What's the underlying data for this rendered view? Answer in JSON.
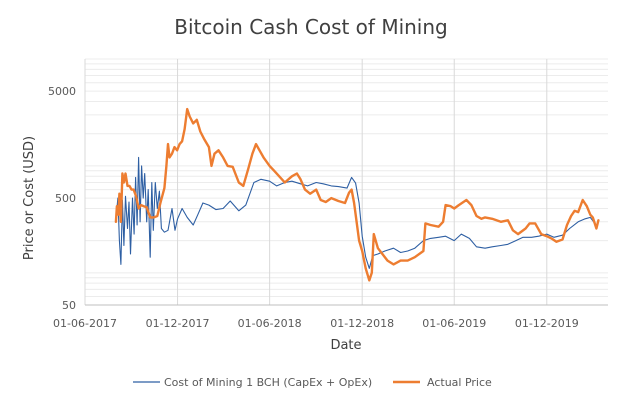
{
  "chart_data": {
    "type": "line",
    "title": "Bitcoin Cash Cost of Mining",
    "xlabel": "Date",
    "ylabel": "Price or Cost (USD)",
    "y_scale": "log",
    "ylim": [
      50,
      10000
    ],
    "xlim": [
      "2017-06-01",
      "2020-03-31"
    ],
    "y_ticks": [
      50,
      500,
      5000
    ],
    "x_ticks": [
      "01-06-2017",
      "01-12-2017",
      "01-06-2018",
      "01-12-2018",
      "01-06-2019",
      "01-12-2019"
    ],
    "grid": true,
    "legend_position": "bottom",
    "series": [
      {
        "name": "Cost of Mining 1 BCH (CapEx + OpEx)",
        "color": "#2e5fa3",
        "points": [
          [
            "2017-08-01",
            320
          ],
          [
            "2017-08-05",
            500
          ],
          [
            "2017-08-08",
            200
          ],
          [
            "2017-08-11",
            120
          ],
          [
            "2017-08-14",
            480
          ],
          [
            "2017-08-17",
            180
          ],
          [
            "2017-08-20",
            520
          ],
          [
            "2017-08-24",
            260
          ],
          [
            "2017-08-27",
            460
          ],
          [
            "2017-08-30",
            150
          ],
          [
            "2017-09-03",
            500
          ],
          [
            "2017-09-06",
            230
          ],
          [
            "2017-09-09",
            780
          ],
          [
            "2017-09-12",
            280
          ],
          [
            "2017-09-15",
            1200
          ],
          [
            "2017-09-18",
            300
          ],
          [
            "2017-09-21",
            1000
          ],
          [
            "2017-09-24",
            500
          ],
          [
            "2017-09-27",
            850
          ],
          [
            "2017-10-01",
            300
          ],
          [
            "2017-10-04",
            600
          ],
          [
            "2017-10-08",
            140
          ],
          [
            "2017-10-11",
            700
          ],
          [
            "2017-10-14",
            250
          ],
          [
            "2017-10-18",
            700
          ],
          [
            "2017-10-22",
            400
          ],
          [
            "2017-10-26",
            580
          ],
          [
            "2017-10-30",
            260
          ],
          [
            "2017-11-05",
            240
          ],
          [
            "2017-11-12",
            250
          ],
          [
            "2017-11-20",
            400
          ],
          [
            "2017-11-26",
            250
          ],
          [
            "2017-12-01",
            320
          ],
          [
            "2017-12-10",
            400
          ],
          [
            "2017-12-20",
            330
          ],
          [
            "2018-01-01",
            280
          ],
          [
            "2018-01-10",
            350
          ],
          [
            "2018-01-20",
            450
          ],
          [
            "2018-02-01",
            430
          ],
          [
            "2018-02-15",
            390
          ],
          [
            "2018-03-01",
            400
          ],
          [
            "2018-03-15",
            470
          ],
          [
            "2018-04-01",
            380
          ],
          [
            "2018-04-15",
            430
          ],
          [
            "2018-05-01",
            700
          ],
          [
            "2018-05-15",
            750
          ],
          [
            "2018-06-01",
            720
          ],
          [
            "2018-06-15",
            650
          ],
          [
            "2018-07-01",
            700
          ],
          [
            "2018-07-15",
            720
          ],
          [
            "2018-08-01",
            680
          ],
          [
            "2018-08-15",
            650
          ],
          [
            "2018-09-01",
            700
          ],
          [
            "2018-09-15",
            680
          ],
          [
            "2018-10-01",
            650
          ],
          [
            "2018-10-15",
            640
          ],
          [
            "2018-11-01",
            620
          ],
          [
            "2018-11-10",
            780
          ],
          [
            "2018-11-18",
            690
          ],
          [
            "2018-11-25",
            450
          ],
          [
            "2018-12-01",
            220
          ],
          [
            "2018-12-08",
            140
          ],
          [
            "2018-12-15",
            110
          ],
          [
            "2018-12-22",
            145
          ],
          [
            "2019-01-01",
            150
          ],
          [
            "2019-01-15",
            160
          ],
          [
            "2019-02-01",
            170
          ],
          [
            "2019-02-15",
            155
          ],
          [
            "2019-03-01",
            160
          ],
          [
            "2019-03-15",
            170
          ],
          [
            "2019-04-01",
            200
          ],
          [
            "2019-04-15",
            210
          ],
          [
            "2019-05-01",
            215
          ],
          [
            "2019-05-15",
            220
          ],
          [
            "2019-06-01",
            200
          ],
          [
            "2019-06-15",
            230
          ],
          [
            "2019-07-01",
            210
          ],
          [
            "2019-07-15",
            175
          ],
          [
            "2019-08-01",
            170
          ],
          [
            "2019-08-15",
            175
          ],
          [
            "2019-09-01",
            180
          ],
          [
            "2019-09-15",
            185
          ],
          [
            "2019-10-01",
            200
          ],
          [
            "2019-10-15",
            215
          ],
          [
            "2019-11-01",
            215
          ],
          [
            "2019-11-15",
            220
          ],
          [
            "2019-12-01",
            230
          ],
          [
            "2019-12-15",
            215
          ],
          [
            "2020-01-01",
            225
          ],
          [
            "2020-01-15",
            260
          ],
          [
            "2020-02-01",
            300
          ],
          [
            "2020-02-15",
            320
          ],
          [
            "2020-02-25",
            330
          ],
          [
            "2020-03-05",
            290
          ]
        ]
      },
      {
        "name": "Actual Price",
        "color": "#ed7d31",
        "points": [
          [
            "2017-08-01",
            300
          ],
          [
            "2017-08-03",
            420
          ],
          [
            "2017-08-06",
            350
          ],
          [
            "2017-08-08",
            550
          ],
          [
            "2017-08-11",
            300
          ],
          [
            "2017-08-14",
            850
          ],
          [
            "2017-08-17",
            700
          ],
          [
            "2017-08-20",
            850
          ],
          [
            "2017-08-24",
            650
          ],
          [
            "2017-08-28",
            650
          ],
          [
            "2017-09-01",
            600
          ],
          [
            "2017-09-05",
            600
          ],
          [
            "2017-09-10",
            520
          ],
          [
            "2017-09-15",
            400
          ],
          [
            "2017-09-20",
            430
          ],
          [
            "2017-09-25",
            420
          ],
          [
            "2017-10-01",
            410
          ],
          [
            "2017-10-08",
            330
          ],
          [
            "2017-10-15",
            330
          ],
          [
            "2017-10-22",
            340
          ],
          [
            "2017-10-28",
            450
          ],
          [
            "2017-11-05",
            620
          ],
          [
            "2017-11-09",
            1000
          ],
          [
            "2017-11-12",
            1600
          ],
          [
            "2017-11-15",
            1200
          ],
          [
            "2017-11-20",
            1300
          ],
          [
            "2017-11-25",
            1500
          ],
          [
            "2017-11-30",
            1400
          ],
          [
            "2017-12-05",
            1600
          ],
          [
            "2017-12-10",
            1700
          ],
          [
            "2017-12-15",
            2200
          ],
          [
            "2017-12-20",
            3400
          ],
          [
            "2017-12-25",
            2900
          ],
          [
            "2018-01-01",
            2500
          ],
          [
            "2018-01-08",
            2700
          ],
          [
            "2018-01-15",
            2100
          ],
          [
            "2018-01-22",
            1800
          ],
          [
            "2018-02-01",
            1500
          ],
          [
            "2018-02-06",
            1000
          ],
          [
            "2018-02-12",
            1300
          ],
          [
            "2018-02-20",
            1400
          ],
          [
            "2018-03-01",
            1200
          ],
          [
            "2018-03-10",
            1000
          ],
          [
            "2018-03-20",
            980
          ],
          [
            "2018-04-01",
            700
          ],
          [
            "2018-04-10",
            650
          ],
          [
            "2018-04-20",
            950
          ],
          [
            "2018-04-28",
            1300
          ],
          [
            "2018-05-05",
            1600
          ],
          [
            "2018-05-12",
            1400
          ],
          [
            "2018-05-20",
            1200
          ],
          [
            "2018-06-01",
            1000
          ],
          [
            "2018-06-10",
            900
          ],
          [
            "2018-06-20",
            800
          ],
          [
            "2018-07-01",
            700
          ],
          [
            "2018-07-15",
            800
          ],
          [
            "2018-07-25",
            850
          ],
          [
            "2018-08-01",
            750
          ],
          [
            "2018-08-10",
            600
          ],
          [
            "2018-08-20",
            550
          ],
          [
            "2018-09-01",
            600
          ],
          [
            "2018-09-10",
            480
          ],
          [
            "2018-09-20",
            460
          ],
          [
            "2018-10-01",
            500
          ],
          [
            "2018-10-15",
            470
          ],
          [
            "2018-10-28",
            450
          ],
          [
            "2018-11-05",
            560
          ],
          [
            "2018-11-10",
            600
          ],
          [
            "2018-11-15",
            450
          ],
          [
            "2018-11-20",
            300
          ],
          [
            "2018-11-25",
            200
          ],
          [
            "2018-12-01",
            160
          ],
          [
            "2018-12-08",
            110
          ],
          [
            "2018-12-15",
            85
          ],
          [
            "2018-12-20",
            100
          ],
          [
            "2018-12-24",
            230
          ],
          [
            "2019-01-01",
            170
          ],
          [
            "2019-01-10",
            150
          ],
          [
            "2019-01-20",
            130
          ],
          [
            "2019-02-01",
            120
          ],
          [
            "2019-02-15",
            130
          ],
          [
            "2019-03-01",
            130
          ],
          [
            "2019-03-15",
            140
          ],
          [
            "2019-04-01",
            160
          ],
          [
            "2019-04-05",
            290
          ],
          [
            "2019-04-15",
            280
          ],
          [
            "2019-05-01",
            270
          ],
          [
            "2019-05-10",
            300
          ],
          [
            "2019-05-15",
            430
          ],
          [
            "2019-05-25",
            420
          ],
          [
            "2019-06-01",
            400
          ],
          [
            "2019-06-10",
            430
          ],
          [
            "2019-06-25",
            480
          ],
          [
            "2019-07-05",
            430
          ],
          [
            "2019-07-15",
            340
          ],
          [
            "2019-07-25",
            320
          ],
          [
            "2019-08-01",
            330
          ],
          [
            "2019-08-15",
            320
          ],
          [
            "2019-09-01",
            300
          ],
          [
            "2019-09-15",
            310
          ],
          [
            "2019-09-25",
            250
          ],
          [
            "2019-10-05",
            230
          ],
          [
            "2019-10-20",
            260
          ],
          [
            "2019-10-28",
            290
          ],
          [
            "2019-11-08",
            290
          ],
          [
            "2019-11-20",
            230
          ],
          [
            "2019-12-01",
            220
          ],
          [
            "2019-12-10",
            210
          ],
          [
            "2019-12-20",
            195
          ],
          [
            "2020-01-01",
            205
          ],
          [
            "2020-01-10",
            280
          ],
          [
            "2020-01-18",
            340
          ],
          [
            "2020-01-25",
            380
          ],
          [
            "2020-02-01",
            370
          ],
          [
            "2020-02-10",
            480
          ],
          [
            "2020-02-18",
            420
          ],
          [
            "2020-02-25",
            350
          ],
          [
            "2020-03-01",
            330
          ],
          [
            "2020-03-08",
            260
          ],
          [
            "2020-03-12",
            310
          ]
        ]
      }
    ]
  }
}
